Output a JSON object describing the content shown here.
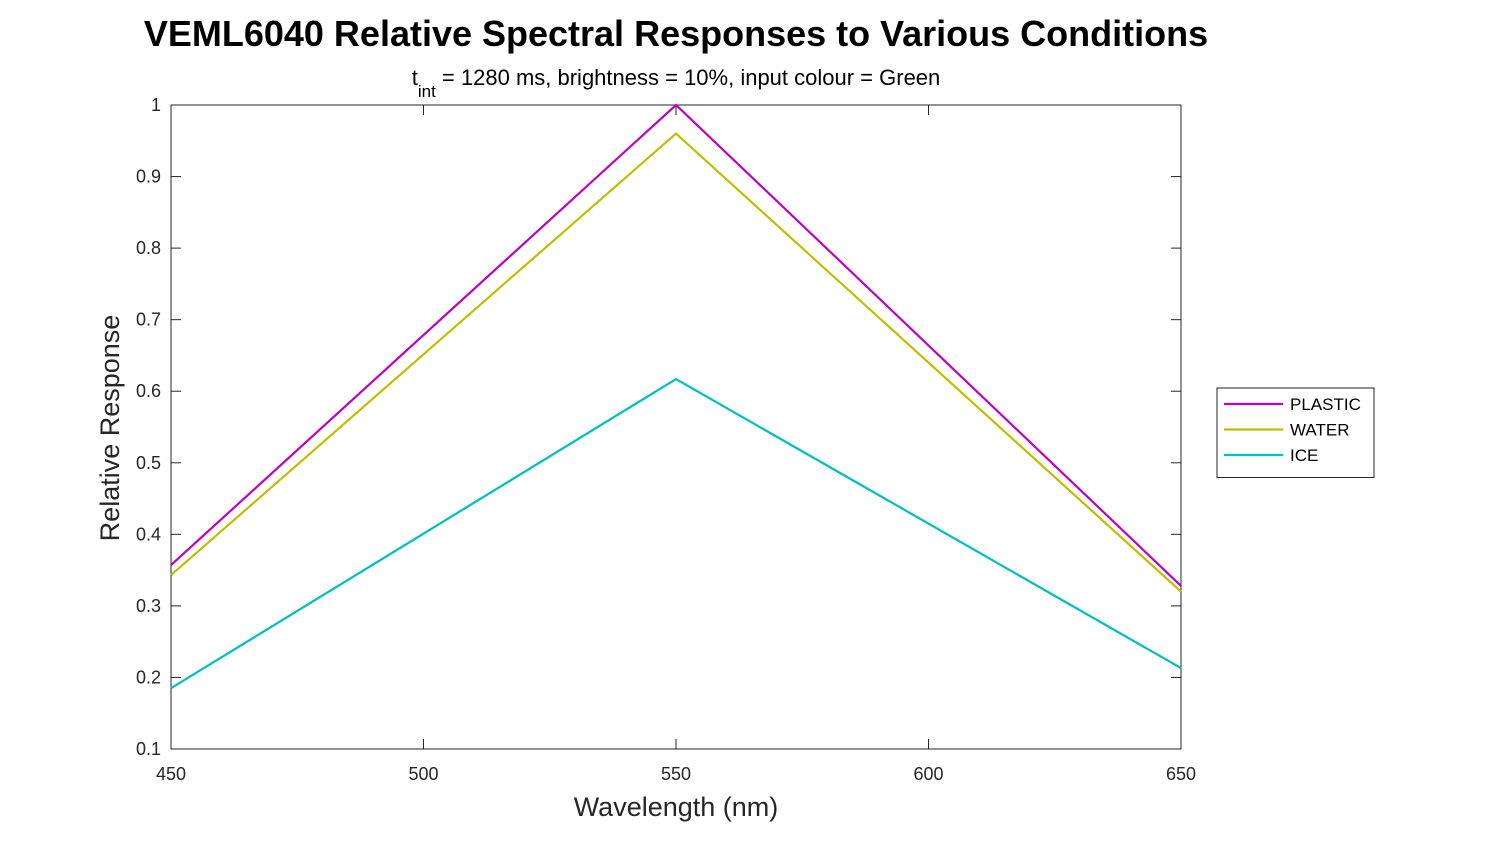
{
  "chart_data": {
    "type": "line",
    "title": "VEML6040 Relative Spectral Responses to Various Conditions",
    "subtitle": {
      "base": "t",
      "subscript": "int",
      "rest": " = 1280 ms, brightness = 10%, input colour = Green"
    },
    "xlabel": "Wavelength (nm)",
    "ylabel": "Relative Response",
    "x": [
      450,
      550,
      650
    ],
    "xlim": [
      450,
      650
    ],
    "ylim": [
      0.1,
      1
    ],
    "xticks": [
      450,
      500,
      550,
      600,
      650
    ],
    "yticks": [
      0.1,
      0.2,
      0.3,
      0.4,
      0.5,
      0.6,
      0.7,
      0.8,
      0.9,
      1
    ],
    "ytick_labels": [
      "0.1",
      "0.2",
      "0.3",
      "0.4",
      "0.5",
      "0.6",
      "0.7",
      "0.8",
      "0.9",
      "1"
    ],
    "grid": false,
    "legend_position": "right",
    "series": [
      {
        "name": "PLASTIC",
        "color": "#bf00bf",
        "values": [
          0.357,
          1.0,
          0.328
        ]
      },
      {
        "name": "WATER",
        "color": "#bfbf00",
        "values": [
          0.343,
          0.96,
          0.32
        ]
      },
      {
        "name": "ICE",
        "color": "#00bfbf",
        "values": [
          0.185,
          0.617,
          0.213
        ]
      }
    ]
  }
}
